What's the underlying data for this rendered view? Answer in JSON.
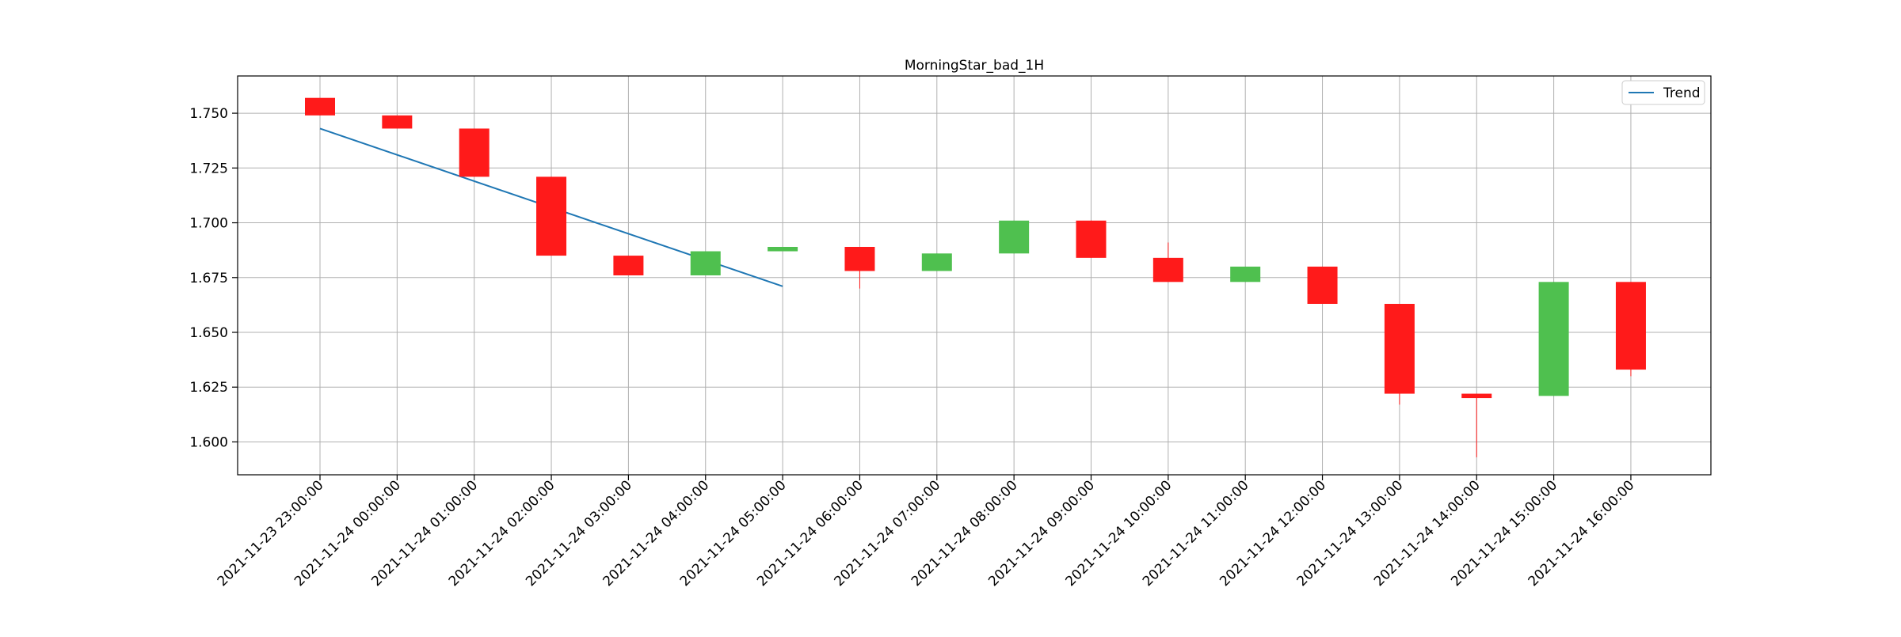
{
  "chart_data": {
    "type": "candlestick",
    "title": "MorningStar_bad_1H",
    "xlabel": "",
    "ylabel": "",
    "ylim": [
      1.585,
      1.767
    ],
    "yticks": [
      "1.600",
      "1.625",
      "1.650",
      "1.675",
      "1.700",
      "1.725",
      "1.750"
    ],
    "grid": true,
    "legend": {
      "position": "top-right",
      "entries": [
        "Trend"
      ]
    },
    "colors": {
      "up": "#4fc04f",
      "down": "#ff1a1a",
      "trend": "#1f77b4",
      "grid": "#b0b0b0"
    },
    "categories": [
      "2021-11-23 23:00:00",
      "2021-11-24 00:00:00",
      "2021-11-24 01:00:00",
      "2021-11-24 02:00:00",
      "2021-11-24 03:00:00",
      "2021-11-24 04:00:00",
      "2021-11-24 05:00:00",
      "2021-11-24 06:00:00",
      "2021-11-24 07:00:00",
      "2021-11-24 08:00:00",
      "2021-11-24 09:00:00",
      "2021-11-24 10:00:00",
      "2021-11-24 11:00:00",
      "2021-11-24 12:00:00",
      "2021-11-24 13:00:00",
      "2021-11-24 14:00:00",
      "2021-11-24 15:00:00",
      "2021-11-24 16:00:00"
    ],
    "candles": [
      {
        "open": 1.757,
        "high": 1.757,
        "low": 1.749,
        "close": 1.749
      },
      {
        "open": 1.749,
        "high": 1.749,
        "low": 1.743,
        "close": 1.743
      },
      {
        "open": 1.743,
        "high": 1.743,
        "low": 1.721,
        "close": 1.721
      },
      {
        "open": 1.721,
        "high": 1.721,
        "low": 1.685,
        "close": 1.685
      },
      {
        "open": 1.685,
        "high": 1.685,
        "low": 1.676,
        "close": 1.676
      },
      {
        "open": 1.676,
        "high": 1.687,
        "low": 1.676,
        "close": 1.687
      },
      {
        "open": 1.687,
        "high": 1.689,
        "low": 1.687,
        "close": 1.689
      },
      {
        "open": 1.689,
        "high": 1.689,
        "low": 1.67,
        "close": 1.678
      },
      {
        "open": 1.678,
        "high": 1.686,
        "low": 1.678,
        "close": 1.686
      },
      {
        "open": 1.686,
        "high": 1.701,
        "low": 1.686,
        "close": 1.701
      },
      {
        "open": 1.701,
        "high": 1.701,
        "low": 1.684,
        "close": 1.684
      },
      {
        "open": 1.684,
        "high": 1.691,
        "low": 1.673,
        "close": 1.673
      },
      {
        "open": 1.673,
        "high": 1.68,
        "low": 1.673,
        "close": 1.68
      },
      {
        "open": 1.68,
        "high": 1.68,
        "low": 1.663,
        "close": 1.663
      },
      {
        "open": 1.663,
        "high": 1.663,
        "low": 1.617,
        "close": 1.622
      },
      {
        "open": 1.622,
        "high": 1.622,
        "low": 1.593,
        "close": 1.62
      },
      {
        "open": 1.621,
        "high": 1.673,
        "low": 1.621,
        "close": 1.673
      },
      {
        "open": 1.673,
        "high": 1.673,
        "low": 1.63,
        "close": 1.633
      }
    ],
    "series": [
      {
        "name": "Trend",
        "type": "line",
        "x": [
          "2021-11-23 23:00:00",
          "2021-11-24 05:00:00"
        ],
        "values": [
          1.743,
          1.671
        ]
      }
    ]
  }
}
